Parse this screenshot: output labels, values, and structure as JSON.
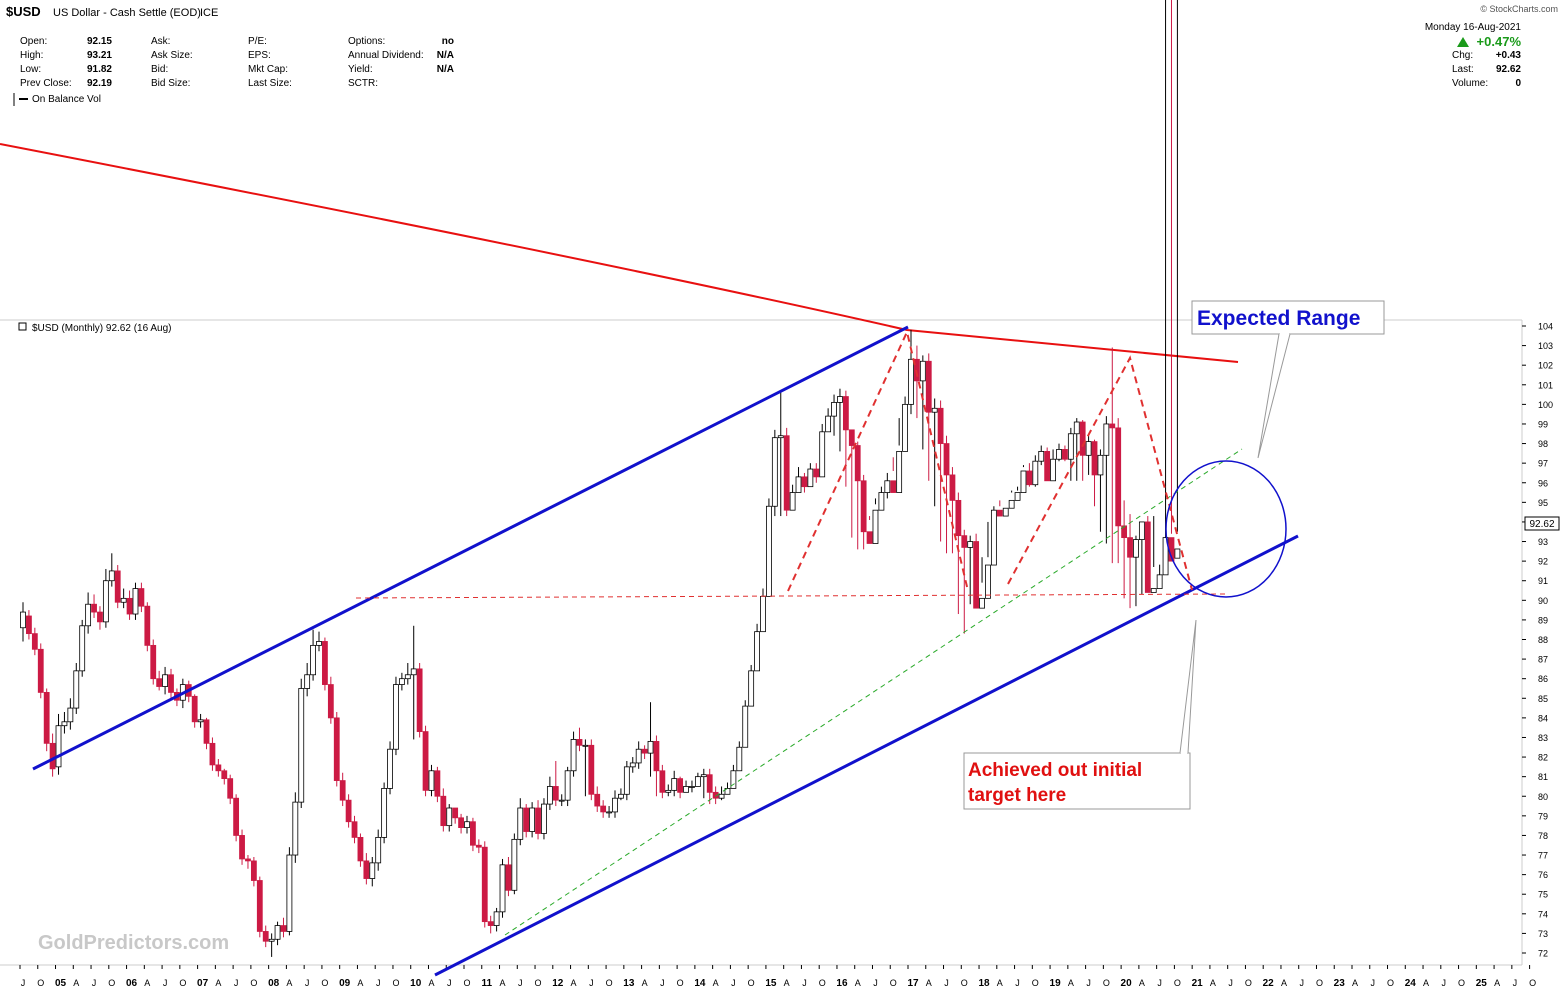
{
  "header": {
    "symbol": "$USD",
    "name": "US Dollar - Cash Settle (EOD)",
    "exchange": "ICE",
    "copyright": "© StockCharts.com",
    "date": "Monday  16-Aug-2021",
    "change_pct": "+0.47%",
    "change_pct_color": "#1a9a1a",
    "stats_col1": [
      {
        "label": "Open:",
        "value": "92.15"
      },
      {
        "label": "High:",
        "value": "93.21"
      },
      {
        "label": "Low:",
        "value": "91.82"
      },
      {
        "label": "Prev Close:",
        "value": "92.19"
      }
    ],
    "stats_col2": [
      "Ask:",
      "Ask Size:",
      "Bid:",
      "Bid Size:"
    ],
    "stats_col3": [
      "P/E:",
      "EPS:",
      "Mkt Cap:",
      "Last Size:"
    ],
    "stats_col4": [
      {
        "label": "Options:",
        "value": "no"
      },
      {
        "label": "Annual Dividend:",
        "value": "N/A"
      },
      {
        "label": "Yield:",
        "value": "N/A"
      },
      {
        "label": "SCTR:",
        "value": ""
      }
    ],
    "stats_right": [
      {
        "label": "Chg:",
        "value": "+0.43"
      },
      {
        "label": "Last:",
        "value": "92.62"
      },
      {
        "label": "Volume:",
        "value": "0"
      }
    ]
  },
  "indicator_label": "On Balance Vol",
  "watermark": "GoldPredictors.com",
  "annotations": {
    "expected_range": "Expected Range",
    "target_line1": "Achieved out initial",
    "target_line2": "target here"
  },
  "colors": {
    "bull": "#ffffff",
    "bear": "#cc1a44",
    "channel": "#1111cc",
    "trend_red": "#e81010",
    "support_dash": "#e03030",
    "green_dash": "#2aaa2a"
  },
  "chart_data": {
    "type": "candlestick",
    "title": "$USD (Monthly) 92.62 (16 Aug)",
    "last_value": "92.62",
    "ylim": [
      71.5,
      104.3
    ],
    "y_ticks": [
      72,
      73,
      74,
      75,
      76,
      77,
      78,
      79,
      80,
      81,
      82,
      83,
      84,
      85,
      86,
      87,
      88,
      89,
      90,
      91,
      92,
      93,
      94,
      95,
      96,
      97,
      98,
      99,
      100,
      101,
      102,
      103,
      104
    ],
    "x_range": [
      "2004-07",
      "2025-12"
    ],
    "x_ticks": [
      {
        "date": "2004-07",
        "label": "J"
      },
      {
        "date": "2004-10",
        "label": "O"
      },
      {
        "date": "2005-01",
        "label": "05"
      },
      {
        "date": "2005-04",
        "label": "A"
      },
      {
        "date": "2005-07",
        "label": "J"
      },
      {
        "date": "2005-10",
        "label": "O"
      },
      {
        "date": "2006-01",
        "label": "06"
      },
      {
        "date": "2006-04",
        "label": "A"
      },
      {
        "date": "2006-07",
        "label": "J"
      },
      {
        "date": "2006-10",
        "label": "O"
      },
      {
        "date": "2007-01",
        "label": "07"
      },
      {
        "date": "2007-04",
        "label": "A"
      },
      {
        "date": "2007-07",
        "label": "J"
      },
      {
        "date": "2007-10",
        "label": "O"
      },
      {
        "date": "2008-01",
        "label": "08"
      },
      {
        "date": "2008-04",
        "label": "A"
      },
      {
        "date": "2008-07",
        "label": "J"
      },
      {
        "date": "2008-10",
        "label": "O"
      },
      {
        "date": "2009-01",
        "label": "09"
      },
      {
        "date": "2009-04",
        "label": "A"
      },
      {
        "date": "2009-07",
        "label": "J"
      },
      {
        "date": "2009-10",
        "label": "O"
      },
      {
        "date": "2010-01",
        "label": "10"
      },
      {
        "date": "2010-04",
        "label": "A"
      },
      {
        "date": "2010-07",
        "label": "J"
      },
      {
        "date": "2010-10",
        "label": "O"
      },
      {
        "date": "2011-01",
        "label": "11"
      },
      {
        "date": "2011-04",
        "label": "A"
      },
      {
        "date": "2011-07",
        "label": "J"
      },
      {
        "date": "2011-10",
        "label": "O"
      },
      {
        "date": "2012-01",
        "label": "12"
      },
      {
        "date": "2012-04",
        "label": "A"
      },
      {
        "date": "2012-07",
        "label": "J"
      },
      {
        "date": "2012-10",
        "label": "O"
      },
      {
        "date": "2013-01",
        "label": "13"
      },
      {
        "date": "2013-04",
        "label": "A"
      },
      {
        "date": "2013-07",
        "label": "J"
      },
      {
        "date": "2013-10",
        "label": "O"
      },
      {
        "date": "2014-01",
        "label": "14"
      },
      {
        "date": "2014-04",
        "label": "A"
      },
      {
        "date": "2014-07",
        "label": "J"
      },
      {
        "date": "2014-10",
        "label": "O"
      },
      {
        "date": "2015-01",
        "label": "15"
      },
      {
        "date": "2015-04",
        "label": "A"
      },
      {
        "date": "2015-07",
        "label": "J"
      },
      {
        "date": "2015-10",
        "label": "O"
      },
      {
        "date": "2016-01",
        "label": "16"
      },
      {
        "date": "2016-04",
        "label": "A"
      },
      {
        "date": "2016-07",
        "label": "J"
      },
      {
        "date": "2016-10",
        "label": "O"
      },
      {
        "date": "2017-01",
        "label": "17"
      },
      {
        "date": "2017-04",
        "label": "A"
      },
      {
        "date": "2017-07",
        "label": "J"
      },
      {
        "date": "2017-10",
        "label": "O"
      },
      {
        "date": "2018-01",
        "label": "18"
      },
      {
        "date": "2018-04",
        "label": "A"
      },
      {
        "date": "2018-07",
        "label": "J"
      },
      {
        "date": "2018-10",
        "label": "O"
      },
      {
        "date": "2019-01",
        "label": "19"
      },
      {
        "date": "2019-04",
        "label": "A"
      },
      {
        "date": "2019-07",
        "label": "J"
      },
      {
        "date": "2019-10",
        "label": "O"
      },
      {
        "date": "2020-01",
        "label": "20"
      },
      {
        "date": "2020-04",
        "label": "A"
      },
      {
        "date": "2020-07",
        "label": "J"
      },
      {
        "date": "2020-10",
        "label": "O"
      },
      {
        "date": "2021-01",
        "label": "21"
      },
      {
        "date": "2021-04",
        "label": "A"
      },
      {
        "date": "2021-07",
        "label": "J"
      },
      {
        "date": "2021-10",
        "label": "O"
      },
      {
        "date": "2022-01",
        "label": "22"
      },
      {
        "date": "2022-04",
        "label": "A"
      },
      {
        "date": "2022-07",
        "label": "J"
      },
      {
        "date": "2022-10",
        "label": "O"
      },
      {
        "date": "2023-01",
        "label": "23"
      },
      {
        "date": "2023-04",
        "label": "A"
      },
      {
        "date": "2023-07",
        "label": "J"
      },
      {
        "date": "2023-10",
        "label": "O"
      },
      {
        "date": "2024-01",
        "label": "24"
      },
      {
        "date": "2024-04",
        "label": "A"
      },
      {
        "date": "2024-07",
        "label": "J"
      },
      {
        "date": "2024-10",
        "label": "O"
      },
      {
        "date": "2025-01",
        "label": "25"
      },
      {
        "date": "2025-04",
        "label": "A"
      },
      {
        "date": "2025-07",
        "label": "J"
      },
      {
        "date": "2025-10",
        "label": "O"
      }
    ],
    "start_month": "2004-07",
    "close_series": [
      89.4,
      88.3,
      87.5,
      85.3,
      82.7,
      81.4,
      83.6,
      83.8,
      84.5,
      86.4,
      88.7,
      89.8,
      89.4,
      88.9,
      91.0,
      91.5,
      89.9,
      90.1,
      89.3,
      90.6,
      89.7,
      87.7,
      86.0,
      85.6,
      86.2,
      85.3,
      84.9,
      85.7,
      85.1,
      83.8,
      83.9,
      82.7,
      81.6,
      81.3,
      80.9,
      79.9,
      78.0,
      76.8,
      76.7,
      75.7,
      73.1,
      72.6,
      72.7,
      73.4,
      73.1,
      77.0,
      79.7,
      85.5,
      86.2,
      87.7,
      87.9,
      85.7,
      84.0,
      80.8,
      79.8,
      78.7,
      77.9,
      76.7,
      75.8,
      76.6,
      77.9,
      80.4,
      82.4,
      85.7,
      86.0,
      86.2,
      86.5,
      83.3,
      80.3,
      81.3,
      80.0,
      78.5,
      79.4,
      78.9,
      78.4,
      78.7,
      77.5,
      77.4,
      73.6,
      73.4,
      74.1,
      76.5,
      75.2,
      77.8,
      79.4,
      78.2,
      79.4,
      78.1,
      79.6,
      80.5,
      79.8,
      79.8,
      81.3,
      82.9,
      82.6,
      82.6,
      80.1,
      79.5,
      79.2,
      79.2,
      79.9,
      80.1,
      81.5,
      81.7,
      82.4,
      82.2,
      82.8,
      81.3,
      80.2,
      80.3,
      80.9,
      80.2,
      80.5,
      80.5,
      81.0,
      81.1,
      80.2,
      79.9,
      80.1,
      80.4,
      81.3,
      82.5,
      84.6,
      86.4,
      88.4,
      90.2,
      94.8,
      98.3,
      98.4,
      94.6,
      95.5,
      96.3,
      95.8,
      96.7,
      96.3,
      98.6,
      99.4,
      100.1,
      100.4,
      98.7,
      97.9,
      96.1,
      93.5,
      92.9,
      94.6,
      95.5,
      96.1,
      95.5,
      97.6,
      100.0,
      102.3,
      101.2,
      102.2,
      99.6,
      99.8,
      98.0,
      96.4,
      95.1,
      93.3,
      92.7,
      93.0,
      89.6,
      90.1,
      91.8,
      94.6,
      94.3,
      94.7,
      95.1,
      95.5,
      96.6,
      95.9,
      97.1,
      97.6,
      96.1,
      97.2,
      97.7,
      97.2,
      98.5,
      99.1,
      97.4,
      98.1,
      96.4,
      97.4,
      99.0,
      98.8,
      93.8,
      93.2,
      92.2,
      93.1,
      94.0,
      90.4,
      90.6,
      91.3,
      93.2,
      92.0,
      92.62
    ],
    "open_series": [
      88.6,
      89.2,
      88.3,
      87.5,
      85.3,
      82.7,
      81.5,
      83.6,
      83.8,
      84.5,
      86.4,
      88.7,
      89.8,
      89.4,
      88.9,
      91.0,
      91.5,
      89.9,
      90.1,
      89.3,
      90.6,
      89.7,
      87.7,
      86.0,
      85.6,
      86.2,
      85.3,
      84.9,
      85.7,
      85.1,
      83.8,
      83.9,
      82.7,
      81.6,
      81.3,
      80.9,
      79.9,
      78.0,
      76.8,
      76.7,
      75.7,
      73.1,
      72.6,
      72.7,
      73.4,
      73.1,
      77.0,
      79.7,
      85.5,
      86.2,
      87.7,
      87.9,
      85.7,
      84.0,
      80.8,
      79.8,
      78.7,
      77.9,
      76.7,
      75.8,
      76.6,
      77.9,
      80.4,
      82.4,
      85.7,
      86.0,
      86.2,
      86.5,
      83.3,
      80.3,
      81.3,
      80.0,
      78.5,
      79.4,
      78.9,
      78.4,
      78.7,
      77.5,
      77.4,
      73.6,
      73.4,
      74.1,
      76.5,
      75.2,
      77.8,
      79.4,
      78.2,
      79.4,
      78.1,
      79.6,
      80.5,
      79.8,
      79.8,
      81.3,
      82.9,
      82.6,
      82.6,
      80.1,
      79.5,
      79.2,
      79.2,
      79.9,
      80.1,
      81.5,
      81.7,
      82.4,
      82.2,
      82.8,
      81.3,
      80.2,
      80.3,
      80.9,
      80.2,
      80.5,
      80.5,
      81.0,
      81.1,
      80.2,
      79.9,
      80.1,
      80.4,
      81.3,
      82.5,
      84.6,
      86.4,
      88.4,
      90.2,
      94.8,
      98.3,
      98.4,
      94.6,
      95.5,
      96.3,
      95.8,
      96.7,
      96.3,
      98.6,
      99.4,
      100.1,
      100.4,
      98.7,
      97.9,
      96.1,
      93.5,
      92.9,
      94.6,
      95.5,
      96.1,
      95.5,
      97.6,
      100.0,
      102.3,
      101.2,
      102.2,
      99.6,
      99.8,
      98.0,
      96.4,
      95.1,
      93.3,
      92.7,
      93.0,
      89.6,
      90.1,
      91.8,
      94.6,
      94.3,
      94.7,
      95.1,
      95.5,
      96.6,
      95.9,
      97.1,
      97.6,
      96.1,
      97.2,
      97.7,
      97.2,
      98.5,
      99.1,
      97.4,
      98.1,
      96.4,
      97.4,
      99.0,
      98.8,
      93.8,
      93.2,
      92.2,
      93.1,
      94.0,
      90.4,
      90.6,
      91.3,
      93.2,
      92.15
    ],
    "high_series": [
      89.9,
      89.5,
      88.6,
      87.8,
      85.5,
      83.2,
      84.2,
      84.3,
      85.0,
      86.8,
      89.0,
      90.4,
      90.3,
      89.7,
      91.6,
      92.4,
      91.8,
      90.6,
      90.5,
      90.9,
      90.9,
      89.9,
      88.0,
      86.4,
      86.6,
      86.5,
      85.5,
      86.0,
      85.9,
      85.2,
      84.2,
      84.0,
      83.0,
      81.9,
      81.4,
      81.1,
      80.1,
      78.3,
      77.0,
      76.9,
      75.9,
      73.4,
      73.0,
      73.6,
      73.8,
      77.4,
      80.2,
      86.0,
      86.8,
      88.5,
      88.4,
      88.1,
      86.1,
      84.3,
      81.2,
      80.1,
      79.0,
      78.1,
      77.1,
      76.9,
      78.3,
      80.7,
      82.8,
      86.1,
      86.3,
      86.8,
      88.7,
      86.8,
      83.6,
      81.6,
      81.5,
      80.4,
      79.6,
      79.4,
      79.1,
      79.0,
      78.9,
      77.8,
      77.7,
      73.9,
      74.3,
      76.8,
      76.9,
      78.1,
      79.9,
      79.6,
      79.7,
      79.8,
      79.9,
      81.0,
      81.8,
      80.1,
      81.5,
      83.3,
      83.5,
      82.9,
      82.9,
      80.5,
      79.8,
      79.5,
      80.3,
      80.4,
      81.8,
      82.0,
      82.8,
      82.6,
      84.8,
      83.1,
      81.6,
      80.6,
      81.3,
      81.0,
      80.8,
      80.8,
      81.2,
      81.4,
      81.4,
      80.5,
      80.5,
      80.7,
      81.6,
      82.8,
      84.9,
      86.7,
      88.8,
      90.6,
      95.2,
      98.7,
      100.6,
      98.8,
      95.9,
      96.8,
      96.5,
      97.0,
      97.0,
      99.0,
      99.8,
      100.5,
      100.8,
      100.7,
      98.3,
      98.1,
      96.4,
      94.1,
      94.9,
      95.8,
      96.5,
      96.6,
      97.9,
      100.4,
      103.8,
      103.0,
      102.5,
      102.6,
      100.3,
      100.2,
      98.4,
      96.8,
      95.5,
      93.6,
      93.3,
      93.4,
      90.9,
      92.2,
      94.8,
      95.1,
      95.2,
      95.5,
      95.8,
      96.9,
      97.0,
      97.4,
      97.9,
      97.8,
      97.7,
      98.0,
      97.9,
      98.8,
      99.3,
      99.2,
      98.4,
      98.2,
      97.7,
      99.4,
      102.9,
      99.3,
      95.1,
      94.4,
      93.3,
      93.5,
      94.3,
      94.3,
      91.1,
      91.8,
      93.4,
      93.5,
      93.21
    ],
    "low_series": [
      87.9,
      88.0,
      87.2,
      85.0,
      82.3,
      81.0,
      81.1,
      83.2,
      83.4,
      84.2,
      86.1,
      88.3,
      89.1,
      88.5,
      88.6,
      90.7,
      89.6,
      89.6,
      89.0,
      89.0,
      89.4,
      87.4,
      85.7,
      85.4,
      85.2,
      85.0,
      84.6,
      84.5,
      84.8,
      83.5,
      83.5,
      82.4,
      81.3,
      81.0,
      80.6,
      79.6,
      77.7,
      76.5,
      76.3,
      75.4,
      72.8,
      72.3,
      71.8,
      72.4,
      72.8,
      72.9,
      76.6,
      79.4,
      85.1,
      85.9,
      87.4,
      85.4,
      83.7,
      80.5,
      79.5,
      78.4,
      77.6,
      76.4,
      75.5,
      75.4,
      76.2,
      77.6,
      80.1,
      82.1,
      85.4,
      85.7,
      82.9,
      83.0,
      80.0,
      80.0,
      79.7,
      78.2,
      78.2,
      78.6,
      78.1,
      78.1,
      77.2,
      77.1,
      73.3,
      73.0,
      73.1,
      73.8,
      74.9,
      75.0,
      77.5,
      77.9,
      77.9,
      77.8,
      77.8,
      79.3,
      79.5,
      79.5,
      79.5,
      81.0,
      82.3,
      80.0,
      79.8,
      79.2,
      78.9,
      78.9,
      78.9,
      79.8,
      79.8,
      81.2,
      81.4,
      81.9,
      81.0,
      80.0,
      79.9,
      80.0,
      80.0,
      79.9,
      80.2,
      80.2,
      80.7,
      79.9,
      79.6,
      79.6,
      79.8,
      80.1,
      81.0,
      82.2,
      84.3,
      86.1,
      88.1,
      89.9,
      94.5,
      94.3,
      94.3,
      94.3,
      95.2,
      95.5,
      95.5,
      96.0,
      96.0,
      98.3,
      99.1,
      98.4,
      97.6,
      95.8,
      93.2,
      92.6,
      92.6,
      94.3,
      95.2,
      95.2,
      95.2,
      97.3,
      99.3,
      99.4,
      99.5,
      99.3,
      97.7,
      96.1,
      94.8,
      93.0,
      92.4,
      92.4,
      89.3,
      88.3,
      89.8,
      91.5,
      92.2,
      94.0,
      94.4,
      94.8,
      95.2,
      95.6,
      95.6,
      96.8,
      95.8,
      95.8,
      96.9,
      96.9,
      96.9,
      97.1,
      97.1,
      96.1,
      96.1,
      96.1,
      96.4,
      94.8,
      93.5,
      92.9,
      91.9,
      91.9,
      90.1,
      89.6,
      89.7,
      90.3,
      90.9,
      91.7,
      91.82
    ]
  }
}
